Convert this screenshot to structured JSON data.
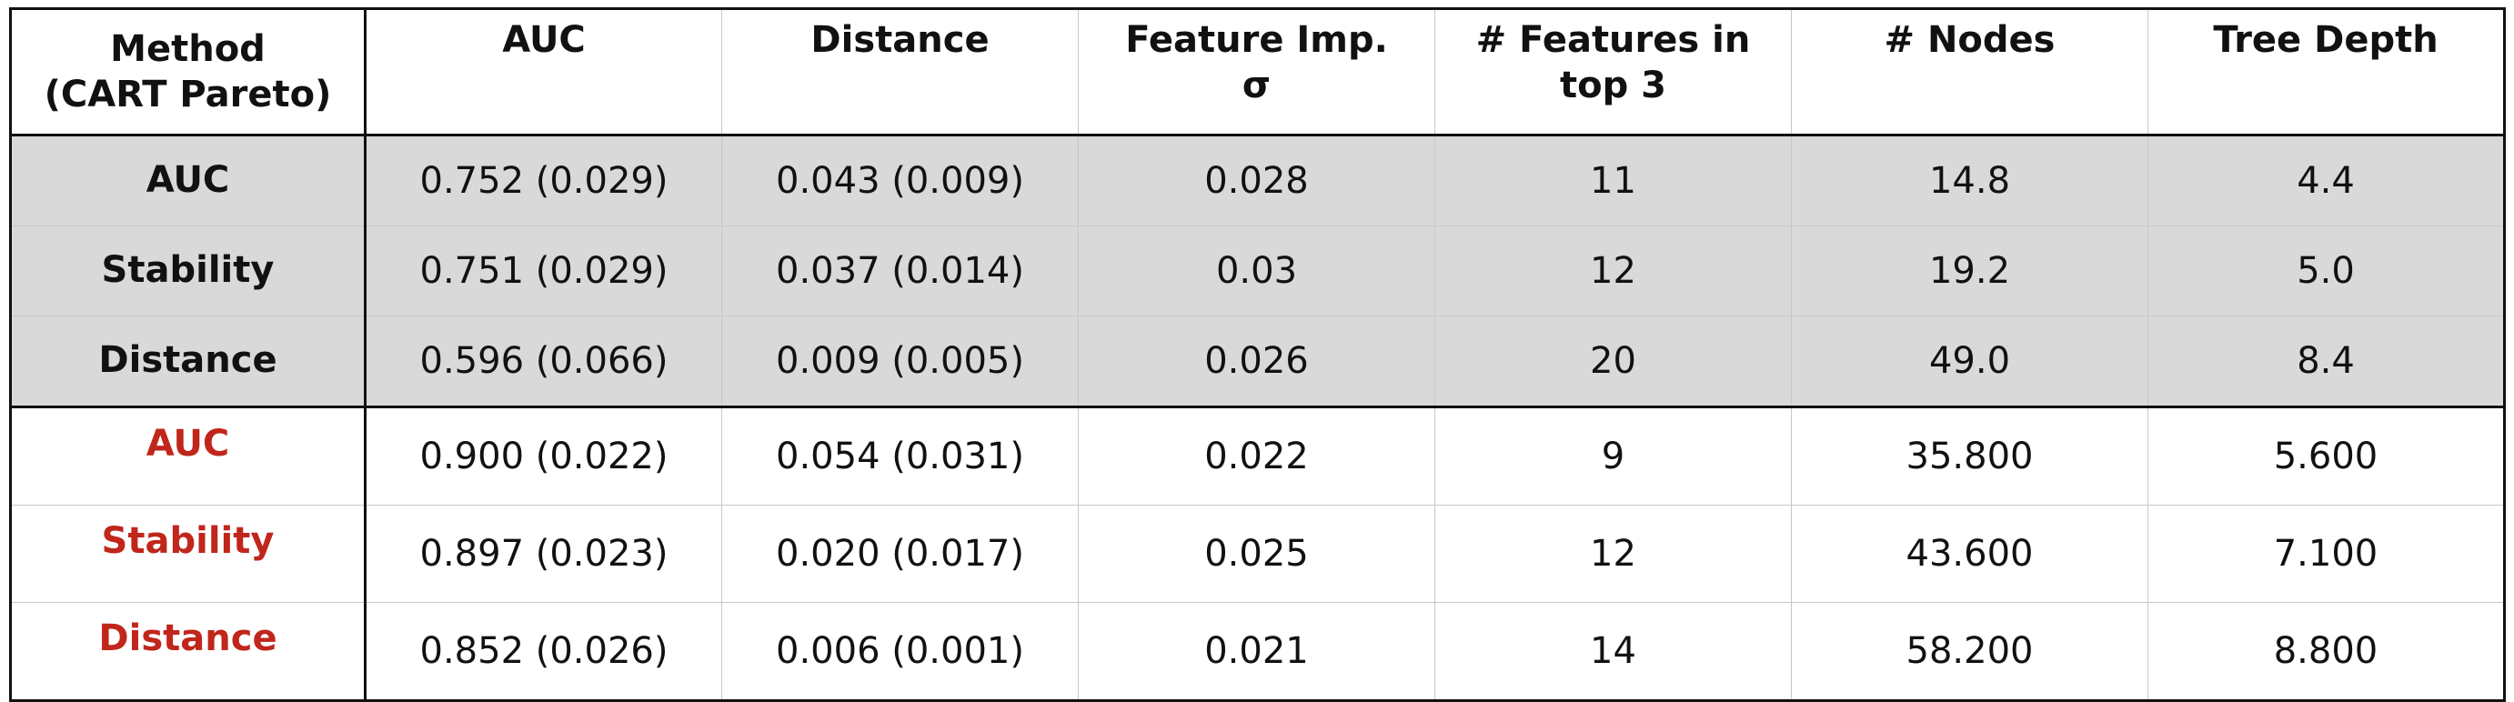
{
  "table": {
    "headers": [
      {
        "line1": "Method",
        "line2": "(CART Pareto)"
      },
      {
        "line1": "AUC",
        "line2": ""
      },
      {
        "line1": "Distance",
        "line2": ""
      },
      {
        "line1": "Feature Imp.",
        "line2": "σ"
      },
      {
        "line1": "# Features in",
        "line2": "top 3"
      },
      {
        "line1": "# Nodes",
        "line2": ""
      },
      {
        "line1": "Tree Depth",
        "line2": ""
      }
    ],
    "rows": [
      [
        "AUC",
        "0.752 (0.029)",
        "0.043 (0.009)",
        "0.028",
        "11",
        "14.8",
        "4.4"
      ],
      [
        "Stability",
        "0.751 (0.029)",
        "0.037 (0.014)",
        "0.03",
        "12",
        "19.2",
        "5.0"
      ],
      [
        "Distance",
        "0.596 (0.066)",
        "0.009 (0.005)",
        "0.026",
        "20",
        "49.0",
        "8.4"
      ],
      [
        "AUC",
        "0.900 (0.022)",
        "0.054 (0.031)",
        "0.022",
        "9",
        "35.800",
        "5.600"
      ],
      [
        "Stability",
        "0.897 (0.023)",
        "0.020 (0.017)",
        "0.025",
        "12",
        "43.600",
        "7.100"
      ],
      [
        "Distance",
        "0.852 (0.026)",
        "0.006 (0.001)",
        "0.021",
        "14",
        "58.200",
        "8.800"
      ]
    ]
  },
  "colors": {
    "group_a_background": "#d9d9d9",
    "group_b_label": "#c0261b",
    "border": "#111111",
    "grid": "#c8c8c8"
  }
}
